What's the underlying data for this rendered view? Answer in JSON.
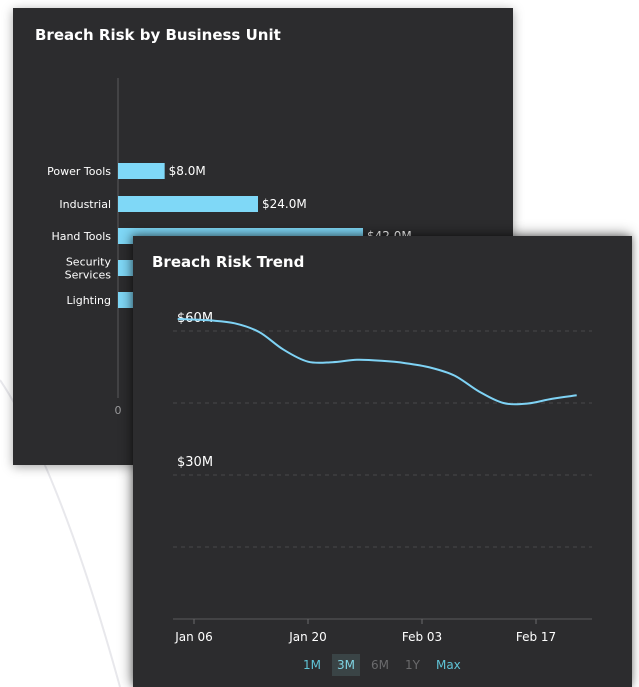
{
  "chart_data": [
    {
      "type": "bar",
      "orientation": "horizontal",
      "title": "Breach Risk by Business Unit",
      "categories": [
        "Power Tools",
        "Industrial",
        "Hand Tools",
        "Security Services",
        "Lighting"
      ],
      "category_lines": [
        [
          "Power Tools"
        ],
        [
          "Industrial"
        ],
        [
          "Hand Tools"
        ],
        [
          "Security",
          "Services"
        ],
        [
          "Lighting"
        ]
      ],
      "values": [
        8.0,
        24.0,
        42.0,
        3.0,
        3.0
      ],
      "value_labels": [
        "$8.0M",
        "$24.0M",
        "$42.0M",
        "",
        ""
      ],
      "xlim": [
        0,
        60
      ],
      "xticks": [
        "0"
      ],
      "bar_color": "#7fd8f7",
      "grid": false
    },
    {
      "type": "line",
      "title": "Breach Risk Trend",
      "x": [
        "2024-01-04",
        "2024-01-08",
        "2024-01-11",
        "2024-01-14",
        "2024-01-17",
        "2024-01-20",
        "2024-01-23",
        "2024-01-26",
        "2024-01-29",
        "2024-02-01",
        "2024-02-04",
        "2024-02-07",
        "2024-02-10",
        "2024-02-13",
        "2024-02-16",
        "2024-02-19",
        "2024-02-22"
      ],
      "y": [
        62.5,
        62.2,
        61.6,
        59.8,
        56.1,
        53.6,
        53.5,
        54.0,
        53.8,
        53.3,
        52.4,
        50.7,
        47.4,
        45.0,
        44.9,
        45.9,
        46.6
      ],
      "xticks": [
        "Jan 06",
        "Jan 20",
        "Feb 03",
        "Feb 17"
      ],
      "yticks": [
        "$60M",
        "$30M"
      ],
      "ylim": [
        0,
        75
      ],
      "line_color": "#7fd3f5",
      "grid": true
    }
  ],
  "range_selector": [
    {
      "label": "1M",
      "state": "normal"
    },
    {
      "label": "3M",
      "state": "active"
    },
    {
      "label": "6M",
      "state": "disabled"
    },
    {
      "label": "1Y",
      "state": "disabled"
    },
    {
      "label": "Max",
      "state": "normal"
    }
  ]
}
